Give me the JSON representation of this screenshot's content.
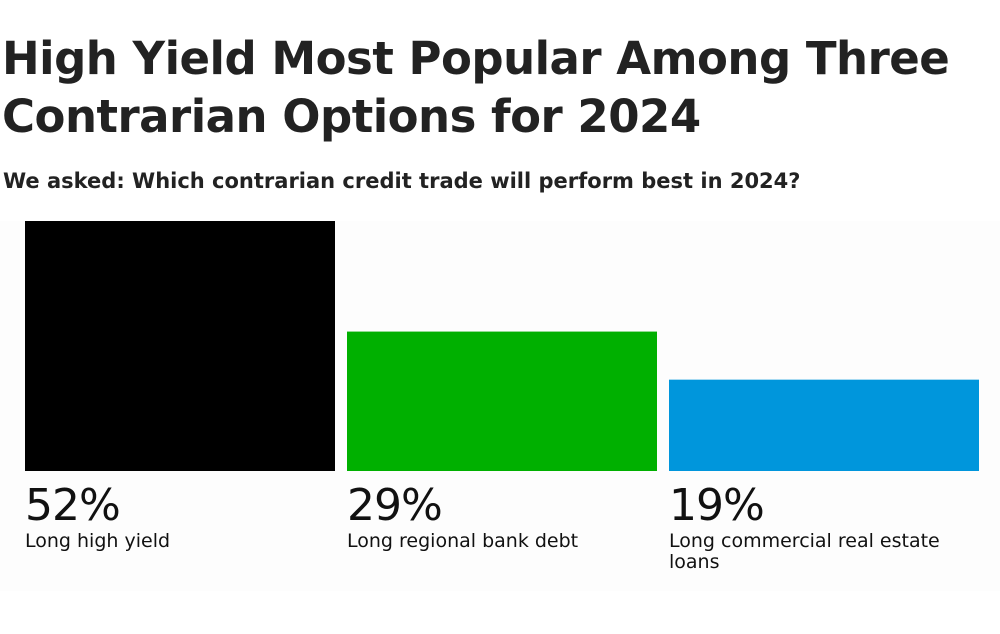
{
  "header": {
    "title": "High Yield Most Popular Among Three Contrarian Options for 2024",
    "subtitle": "We asked: Which contrarian credit trade will perform best in 2024?"
  },
  "chart_data": {
    "type": "bar",
    "title": "High Yield Most Popular Among Three Contrarian Options for 2024",
    "subtitle": "We asked: Which contrarian credit trade will perform best in 2024?",
    "categories": [
      "Long high yield",
      "Long regional bank debt",
      "Long commercial real estate loans"
    ],
    "values": [
      52,
      29,
      19
    ],
    "value_labels": [
      "52%",
      "29%",
      "19%"
    ],
    "colors": [
      "#000000",
      "#00b000",
      "#0096dc"
    ],
    "xlabel": "",
    "ylabel": "",
    "unit": "%",
    "grid": false,
    "legend": "none"
  }
}
